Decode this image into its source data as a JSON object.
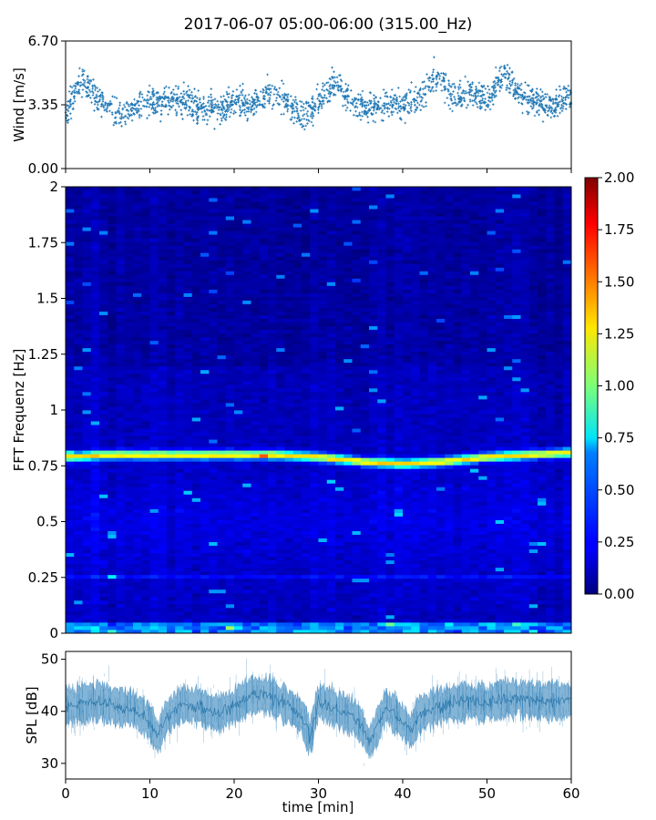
{
  "chart_data": {
    "title": "2017-06-07 05:00-06:00 (315.00_Hz)",
    "x_axis": {
      "label": "time [min]",
      "range": [
        0,
        60
      ],
      "ticks": [
        "0",
        "10",
        "20",
        "30",
        "40",
        "50",
        "60"
      ]
    },
    "panels": [
      {
        "type": "scatter",
        "name": "wind",
        "ylabel": "Wind [m/s]",
        "ylim": [
          0,
          6.7
        ],
        "yticks": [
          "0.00",
          "3.35",
          "6.70"
        ],
        "color": "#1f77b4",
        "marker": "+",
        "trend": {
          "x": [
            0,
            2,
            4,
            6,
            8,
            10,
            12,
            14,
            16,
            18,
            20,
            22,
            24,
            26,
            28,
            30,
            32,
            34,
            36,
            38,
            40,
            42,
            44,
            46,
            48,
            50,
            52,
            54,
            56,
            58,
            60
          ],
          "y": [
            3.0,
            4.6,
            3.6,
            2.9,
            3.1,
            3.4,
            3.5,
            3.6,
            3.2,
            3.0,
            3.6,
            3.3,
            4.0,
            3.6,
            2.6,
            3.4,
            4.6,
            3.4,
            3.2,
            3.4,
            3.3,
            3.6,
            5.0,
            3.8,
            4.0,
            3.7,
            5.0,
            3.9,
            3.5,
            3.3,
            3.8
          ]
        },
        "spread": 0.75
      },
      {
        "type": "heatmap",
        "name": "spectrogram",
        "ylabel": "FFT Frequenz [Hz]",
        "ylim": [
          0,
          2
        ],
        "yticks": [
          "0",
          "0.25",
          "0.5",
          "0.75",
          "1",
          "1.25",
          "1.5",
          "1.75",
          "2"
        ],
        "colormap": "jet",
        "colorbar": {
          "range": [
            0,
            2
          ],
          "ticks": [
            "0.00",
            "0.25",
            "0.50",
            "0.75",
            "1.00",
            "1.25",
            "1.50",
            "1.75",
            "2.00"
          ]
        },
        "peak_band": {
          "x": [
            0,
            5,
            10,
            15,
            20,
            25,
            30,
            35,
            40,
            45,
            50,
            55,
            60
          ],
          "freq": [
            0.79,
            0.8,
            0.8,
            0.8,
            0.8,
            0.8,
            0.79,
            0.77,
            0.76,
            0.77,
            0.79,
            0.8,
            0.81
          ]
        },
        "background_level": 0.22
      },
      {
        "type": "area",
        "name": "spl",
        "ylabel": "SPL [dB]",
        "ylim": [
          27,
          51.5
        ],
        "yticks": [
          "30",
          "40",
          "50"
        ],
        "color": "#1f77b4",
        "mean": {
          "x": [
            0,
            2,
            4,
            6,
            8,
            10,
            11,
            12,
            14,
            16,
            18,
            20,
            22,
            24,
            26,
            28,
            29,
            30,
            32,
            34,
            35,
            36,
            37,
            38,
            40,
            41,
            42,
            44,
            46,
            48,
            50,
            52,
            54,
            56,
            58,
            60
          ],
          "y": [
            41,
            41.5,
            42,
            41,
            40.5,
            38,
            35,
            39,
            41.5,
            41,
            39.5,
            41,
            43,
            43,
            41.5,
            39,
            35,
            42,
            40.5,
            39,
            37.5,
            34,
            37,
            41,
            38,
            36,
            39.5,
            41,
            41.5,
            42,
            41.5,
            42.5,
            42.5,
            42,
            42,
            42
          ]
        },
        "spread": 3.2
      }
    ]
  }
}
